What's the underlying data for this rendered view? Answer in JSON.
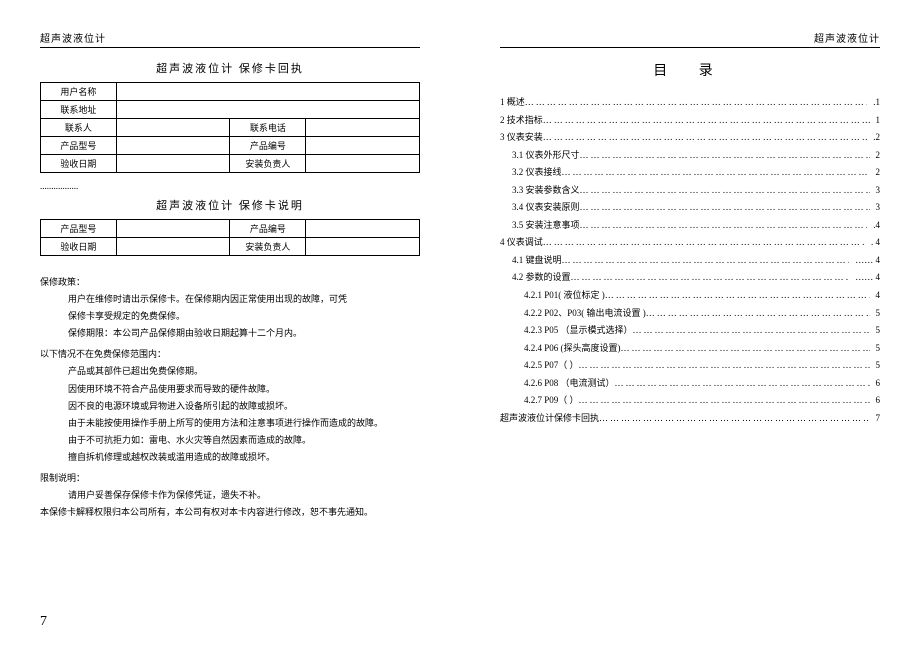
{
  "header": "超声波液位计",
  "left": {
    "card1_title": "超声波液位计 保修卡回执",
    "card2_title": "超声波液位计 保修卡说明",
    "fields": {
      "user_name": "用户名称",
      "address": "联系地址",
      "contact": "联系人",
      "phone": "联系电话",
      "model": "产品型号",
      "serial": "产品编号",
      "accept_date": "验收日期",
      "installer": "安装负责人"
    },
    "separator": ".................",
    "policy": {
      "h1": "保修政策：",
      "p1a": "用户在维修时请出示保修卡。在保修期内因正常使用出现的故障，可凭",
      "p1b": "保修卡享受规定的免费保修。",
      "p2": "保修期限：本公司产品保修期由验收日期起算十二个月内。",
      "h2": "以下情况不在免费保修范围内：",
      "b1": "产品或其部件已超出免费保修期。",
      "b2": "因使用环境不符合产品使用要求而导致的硬件故障。",
      "b3": "因不良的电源环境或异物进入设备所引起的故障或损坏。",
      "b4": "由于未能按使用操作手册上所写的使用方法和注意事项进行操作而造成的故障。",
      "b5": "由于不可抗拒力如：雷电、水火灾等自然因素而造成的故障。",
      "b6": "擅自拆机修理或越权改装或滥用造成的故障或损坏。",
      "h3": "限制说明：",
      "p3": "请用户妥善保存保修卡作为保修凭证，遗失不补。",
      "p4": "本保修卡解释权限归本公司所有，本公司有权对本卡内容进行修改，恕不事先通知。"
    },
    "page_num": "7"
  },
  "toc": {
    "title": "目  录",
    "items": [
      {
        "lvl": 0,
        "lbl": "1 概述",
        "pg": ".1"
      },
      {
        "lvl": 0,
        "lbl": "2 技术指标",
        "pg": "1"
      },
      {
        "lvl": 0,
        "lbl": "3 仪表安装",
        "pg": ".2"
      },
      {
        "lvl": 1,
        "lbl": "3.1 仪表外形尺寸",
        "pg": "2"
      },
      {
        "lvl": 1,
        "lbl": "3.2 仪表接线",
        "pg": "2"
      },
      {
        "lvl": 1,
        "lbl": "3.3 安装参数含义",
        "pg": "3"
      },
      {
        "lvl": 1,
        "lbl": "3.4 仪表安装原则",
        "pg": "3"
      },
      {
        "lvl": 1,
        "lbl": "3.5 安装注意事项",
        "pg": ".4"
      },
      {
        "lvl": 0,
        "lbl": "4 仪表调试",
        "pg": ". 4"
      },
      {
        "lvl": 1,
        "lbl": "4.1 键盘说明",
        "pg": "…… 4"
      },
      {
        "lvl": 1,
        "lbl": "4.2 参数的设置",
        "pg": "…… 4"
      },
      {
        "lvl": 2,
        "lbl": "4.2.1   P01( 液位标定 )",
        "pg": "4"
      },
      {
        "lvl": 2,
        "lbl": "4.2.2   P02、P03( 输出电流设置 )",
        "pg": "5"
      },
      {
        "lvl": 2,
        "lbl": "4.2.3   P05 （显示模式选择）",
        "pg": "5"
      },
      {
        "lvl": 2,
        "lbl": "4.2.4   P06 (探头高度设置)",
        "pg": "5"
      },
      {
        "lvl": 2,
        "lbl": "4.2.5   P07（ ）",
        "pg": "5"
      },
      {
        "lvl": 2,
        "lbl": "4.2.6   P08 （电流测试）",
        "pg": "6"
      },
      {
        "lvl": 2,
        "lbl": "4.2.7   P09（ ）",
        "pg": "6"
      },
      {
        "lvl": 0,
        "lbl": "超声波液位计保修卡回执",
        "pg": "7"
      }
    ]
  }
}
